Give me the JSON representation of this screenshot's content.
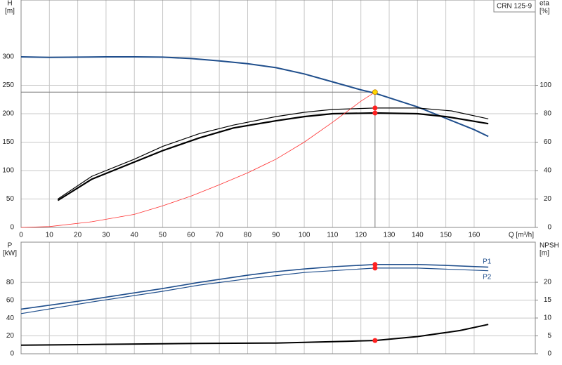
{
  "chart_data": [
    {
      "type": "line",
      "title": "CRN 125-9",
      "ylabel": [
        "H",
        "[m]"
      ],
      "y2label": [
        "eta",
        "[%]"
      ],
      "xlabel": "Q [m³/h]",
      "xlim": [
        0,
        181.6
      ],
      "xticks": [
        0,
        10,
        20,
        30,
        40,
        50,
        60,
        70,
        80,
        90,
        100,
        110,
        120,
        130,
        140,
        150,
        160
      ],
      "ylim": [
        0,
        400
      ],
      "yticks": [
        0,
        50,
        100,
        150,
        200,
        250,
        300
      ],
      "y2lim": [
        0,
        160
      ],
      "y2ticks": [
        0,
        20,
        40,
        60,
        80,
        100
      ],
      "grid": true,
      "series": [
        {
          "color": "#1f4e8c",
          "width": 2,
          "x": [
            0,
            10,
            20,
            30,
            40,
            50,
            60,
            70,
            80,
            90,
            100,
            110,
            120,
            125,
            130,
            140,
            150,
            160,
            165
          ],
          "values": [
            300,
            299,
            299.5,
            300,
            300,
            299.5,
            297,
            293,
            288,
            281,
            270,
            256,
            242,
            236,
            228,
            212,
            192,
            172,
            160
          ]
        },
        {
          "color": "#000000",
          "width": 1.2,
          "axis": "y2",
          "x": [
            13,
            25,
            40,
            50,
            63,
            75,
            90,
            100,
            110,
            125,
            140,
            152,
            165
          ],
          "values": [
            20,
            36,
            48,
            57,
            66,
            72,
            78,
            81,
            83,
            84,
            84,
            82,
            76.4
          ]
        },
        {
          "color": "#000000",
          "width": 2.2,
          "axis": "y2",
          "x": [
            13,
            25,
            40,
            50,
            63,
            75,
            90,
            100,
            110,
            125,
            140,
            150,
            165
          ],
          "values": [
            19,
            34,
            46,
            54,
            63,
            70,
            75,
            78,
            80,
            80.5,
            80,
            78,
            73
          ]
        },
        {
          "color": "#ff3030",
          "width": 0.8,
          "x": [
            0,
            10,
            25,
            40,
            50,
            60,
            70,
            80,
            90,
            100,
            110,
            120,
            125
          ],
          "values": [
            0,
            1.5,
            10,
            23,
            38,
            55,
            75,
            96,
            120,
            150,
            185,
            222,
            238
          ]
        }
      ],
      "points": [
        {
          "x": 125,
          "y": 238,
          "color": "#ffd700",
          "guide": true
        },
        {
          "x": 125,
          "y": 84,
          "axis": "y2",
          "color": "#ff2020"
        },
        {
          "x": 125,
          "y": 80.5,
          "axis": "y2",
          "color": "#ff2020"
        }
      ]
    },
    {
      "type": "line",
      "ylabel": [
        "P",
        "[kW]"
      ],
      "y2label": [
        "NPSH",
        "[m]"
      ],
      "xlim": [
        0,
        181.6
      ],
      "ylim": [
        0,
        125
      ],
      "yticks": [
        0,
        20,
        40,
        60,
        80
      ],
      "y2lim": [
        0,
        31.2
      ],
      "y2ticks": [
        0,
        5,
        10,
        15,
        20
      ],
      "grid": true,
      "series": [
        {
          "name": "P1",
          "color": "#1f4e8c",
          "width": 1.6,
          "x": [
            0,
            25,
            50,
            63,
            80,
            90,
            100,
            110,
            125,
            140,
            150,
            165
          ],
          "values": [
            50,
            61,
            73,
            80,
            88,
            92,
            95,
            97.5,
            100,
            100,
            99,
            97
          ]
        },
        {
          "name": "P2",
          "color": "#1f4e8c",
          "width": 1.2,
          "x": [
            0,
            25,
            50,
            63,
            80,
            100,
            125,
            140,
            165
          ],
          "values": [
            45,
            58,
            70,
            77,
            84,
            91,
            96,
            96,
            93
          ]
        },
        {
          "color": "#000000",
          "width": 2,
          "axis": "y2",
          "x": [
            0,
            25,
            50,
            63,
            90,
            100,
            115,
            125,
            140,
            155,
            165
          ],
          "values": [
            2.4,
            2.6,
            2.8,
            2.9,
            3.0,
            3.2,
            3.5,
            3.7,
            4.8,
            6.5,
            8.2
          ]
        }
      ],
      "points": [
        {
          "x": 125,
          "y": 100,
          "color": "#ff2020"
        },
        {
          "x": 125,
          "y": 96,
          "color": "#ff2020"
        },
        {
          "x": 125,
          "y": 3.7,
          "axis": "y2",
          "color": "#ff2020"
        }
      ]
    }
  ]
}
